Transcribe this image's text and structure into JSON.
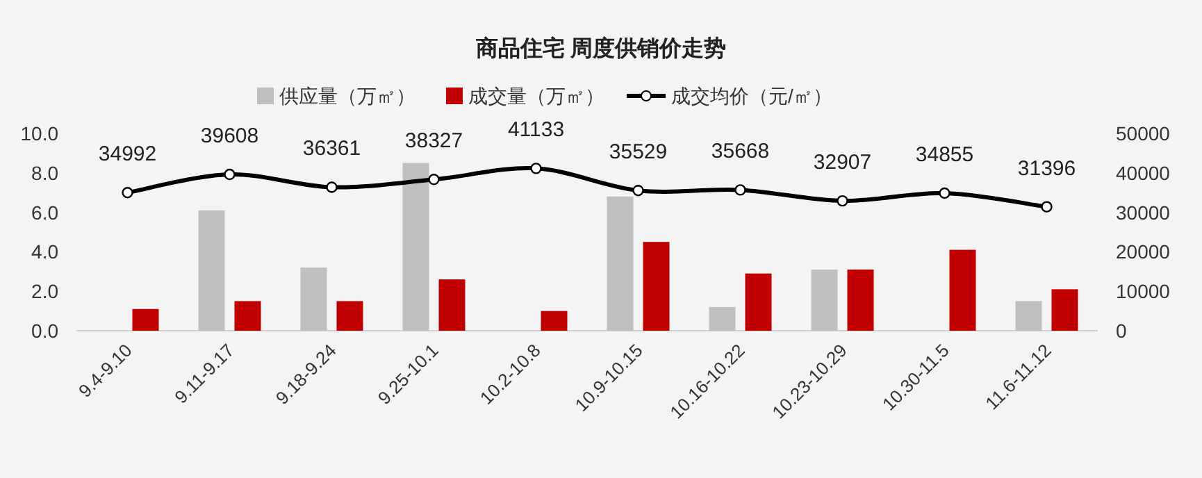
{
  "chart_data": {
    "type": "bar",
    "title": "商品住宅  周度供销价走势",
    "categories": [
      "9.4-9.10",
      "9.11-9.17",
      "9.18-9.24",
      "9.25-10.1",
      "10.2-10.8",
      "10.9-10.15",
      "10.16-10.22",
      "10.23-10.29",
      "10.30-11.5",
      "11.6-11.12"
    ],
    "series": [
      {
        "name": "供应量（万㎡）",
        "color": "#bfbfbf",
        "values": [
          null,
          6.1,
          3.2,
          8.5,
          null,
          6.8,
          1.2,
          3.1,
          null,
          1.5
        ]
      },
      {
        "name": "成交量（万㎡）",
        "color": "#c00000",
        "values": [
          1.1,
          1.5,
          1.5,
          2.6,
          1.0,
          4.5,
          2.9,
          3.1,
          4.1,
          2.1
        ]
      },
      {
        "name": "成交均价（元/㎡）",
        "type": "line",
        "axis": "y2",
        "color": "#000000",
        "marker": "circle",
        "values": [
          34992,
          39608,
          36361,
          38327,
          41133,
          35529,
          35668,
          32907,
          34855,
          31396
        ],
        "value_labels": [
          "34992",
          "39608",
          "36361",
          "38327",
          "41133",
          "35529",
          "35668",
          "32907",
          "34855",
          "31396"
        ]
      }
    ],
    "ylim": [
      0,
      10
    ],
    "yticks": [
      {
        "value": 0,
        "label": "0.0"
      },
      {
        "value": 2,
        "label": "2.0"
      },
      {
        "value": 4,
        "label": "4.0"
      },
      {
        "value": 6,
        "label": "6.0"
      },
      {
        "value": 8,
        "label": "8.0"
      },
      {
        "value": 10,
        "label": "10.0"
      }
    ],
    "y2lim": [
      0,
      50000
    ],
    "y2ticks": [
      0,
      10000,
      20000,
      30000,
      40000,
      50000
    ],
    "legend": "top",
    "grid": false
  }
}
